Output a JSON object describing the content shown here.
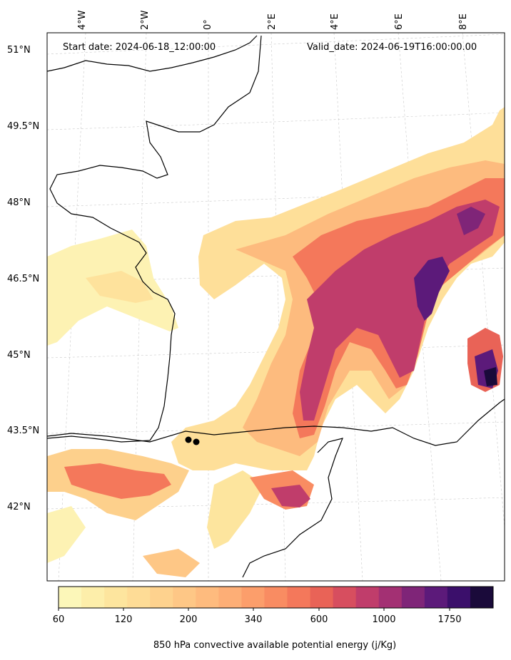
{
  "header": {
    "start_date": "Start date: 2024-06-18_12:00:00",
    "valid_date": "Valid_date: 2024-06-19T16:00:00.00"
  },
  "axes": {
    "latitude_labels": [
      "51°N",
      "49.5°N",
      "48°N",
      "46.5°N",
      "45°N",
      "43.5°N",
      "42°N"
    ],
    "longitude_labels": [
      "4°W",
      "2°W",
      "0°",
      "2°E",
      "4°E",
      "6°E",
      "8°E"
    ]
  },
  "colorbar": {
    "tick_labels": [
      "60",
      "120",
      "200",
      "340",
      "600",
      "1000",
      "1750"
    ],
    "label": "850 hPa convective available potential energy (j/Kg)",
    "colors": [
      "#fcf7b9",
      "#fdeeaa",
      "#fde59e",
      "#fedc96",
      "#fed28e",
      "#fec786",
      "#febb7e",
      "#fdae76",
      "#fc9e6b",
      "#f98c62",
      "#f4785b",
      "#e96357",
      "#d74e5f",
      "#c03d6b",
      "#a33073",
      "#7f2578",
      "#5c1a7a",
      "#3b0f6b",
      "#1a0a3a"
    ]
  },
  "markers": {
    "count": 2,
    "color": "#000000"
  }
}
